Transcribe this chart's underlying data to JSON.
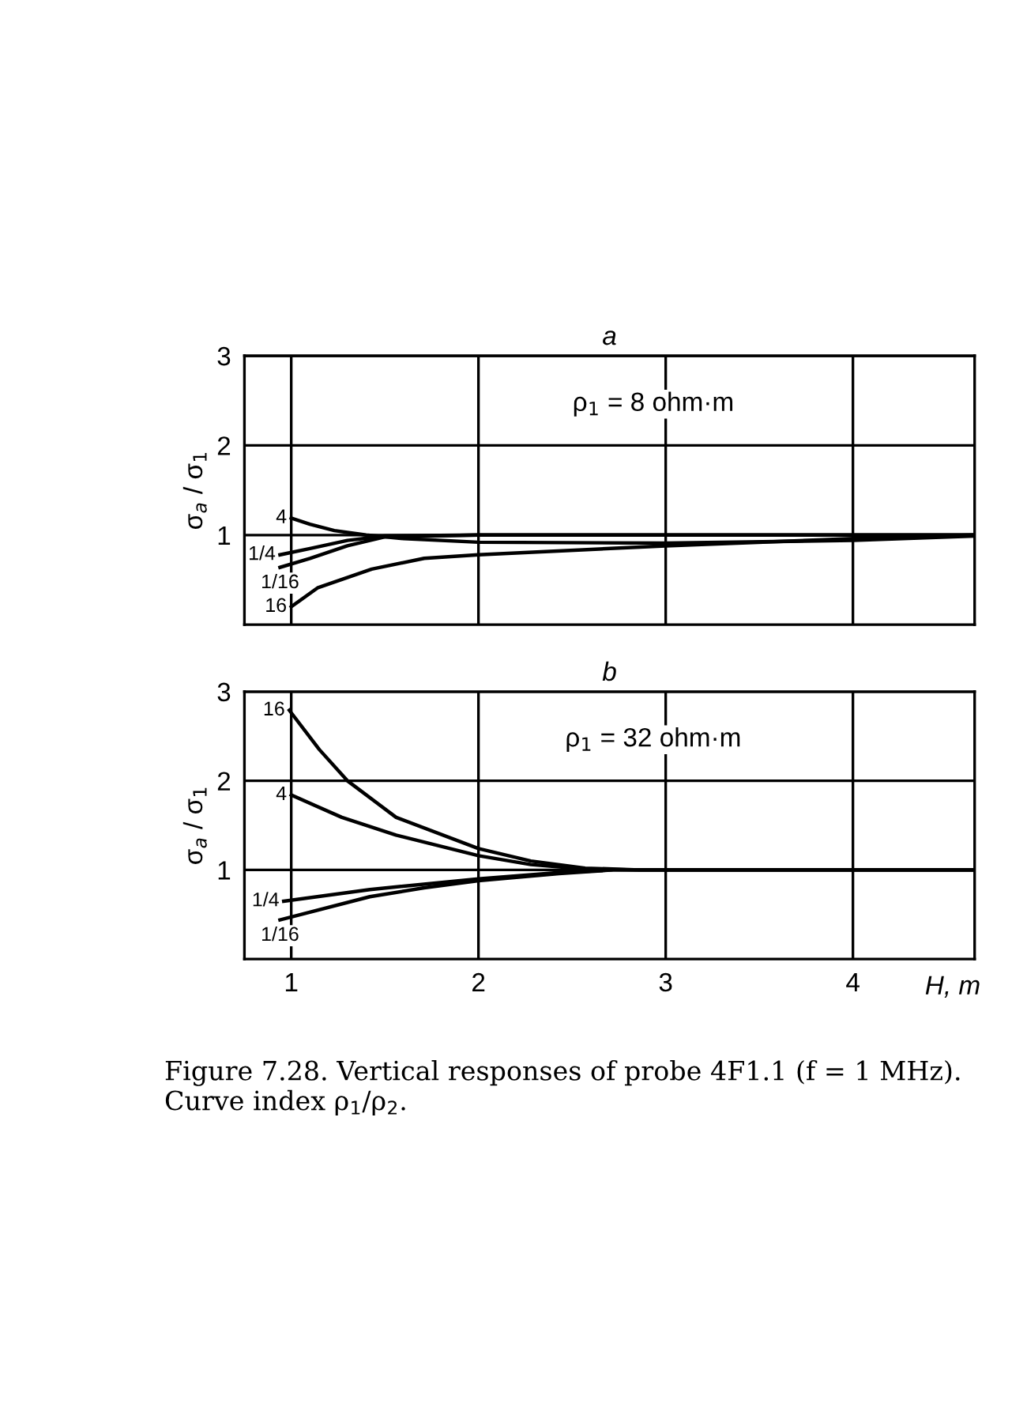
{
  "chart_data": [
    {
      "type": "line",
      "title": "a",
      "ylabel": "σ$_{a}$ / σ$_{1}$",
      "annotations": [
        "ρ$_{1}$ = 8 ohm·m"
      ],
      "xlim": [
        0.75,
        4.65
      ],
      "ylim": [
        0,
        3
      ],
      "xticks": [
        1,
        2,
        3,
        4
      ],
      "yticks": [
        1,
        2,
        3
      ],
      "tick_labels": "y",
      "grid": true,
      "legend": false,
      "marker": "none",
      "line_style": "solid",
      "series": [
        {
          "name": "4",
          "color": "#000000",
          "x": [
            1.0,
            1.1,
            1.23,
            1.4,
            1.6,
            2.0,
            3.0,
            4.0,
            4.65
          ],
          "values": [
            1.19,
            1.12,
            1.05,
            1.0,
            0.96,
            0.92,
            0.91,
            0.94,
            0.99
          ]
        },
        {
          "name": "1/4",
          "color": "#000000",
          "x": [
            0.94,
            1.1,
            1.3,
            1.5,
            2.0,
            4.65
          ],
          "values": [
            0.78,
            0.85,
            0.94,
            0.99,
            1.0,
            1.0
          ]
        },
        {
          "name": "1/16",
          "color": "#000000",
          "x": [
            0.94,
            1.1,
            1.3,
            1.5,
            2.0,
            4.65
          ],
          "values": [
            0.64,
            0.74,
            0.88,
            0.98,
            1.0,
            1.0
          ]
        },
        {
          "name": "16",
          "color": "#000000",
          "x": [
            1.0,
            1.14,
            1.43,
            1.71,
            2.0,
            3.0,
            4.0,
            4.65
          ],
          "values": [
            0.2,
            0.41,
            0.62,
            0.74,
            0.78,
            0.88,
            0.96,
            1.0
          ]
        }
      ]
    },
    {
      "type": "line",
      "title": "b",
      "xlabel": "H, m",
      "ylabel": "σ$_{a}$ / σ$_{1}$",
      "annotations": [
        "ρ$_{1}$ = 32 ohm·m",
        "Figure 7.28. Vertical responses of probe 4F1.1 (f = 1 MHz). Curve index ρ$_{1}$/ρ$_{2}$."
      ],
      "xlim": [
        0.75,
        4.65
      ],
      "ylim": [
        0,
        3
      ],
      "xticks": [
        1,
        2,
        3,
        4
      ],
      "yticks": [
        1,
        2,
        3
      ],
      "grid": true,
      "legend": false,
      "marker": "none",
      "line_style": "solid",
      "series": [
        {
          "name": "16",
          "color": "#000000",
          "x": [
            0.99,
            1.15,
            1.3,
            1.56,
            2.0,
            2.28,
            2.57,
            2.86,
            4.65
          ],
          "values": [
            2.79,
            2.35,
            2.0,
            1.59,
            1.24,
            1.1,
            1.02,
            1.0,
            1.0
          ]
        },
        {
          "name": "4",
          "color": "#000000",
          "x": [
            1.0,
            1.27,
            1.56,
            2.0,
            2.28,
            2.57,
            2.86,
            4.65
          ],
          "values": [
            1.84,
            1.59,
            1.39,
            1.16,
            1.06,
            1.01,
            1.0,
            1.0
          ]
        },
        {
          "name": "1/4",
          "color": "#000000",
          "x": [
            0.96,
            1.42,
            2.0,
            2.43,
            2.72,
            4.65
          ],
          "values": [
            0.65,
            0.78,
            0.9,
            0.97,
            1.0,
            1.0
          ]
        },
        {
          "name": "1/16",
          "color": "#000000",
          "x": [
            0.94,
            1.42,
            1.71,
            2.0,
            2.43,
            2.72,
            4.65
          ],
          "values": [
            0.44,
            0.7,
            0.8,
            0.88,
            0.96,
            1.0,
            1.0
          ]
        }
      ]
    }
  ]
}
